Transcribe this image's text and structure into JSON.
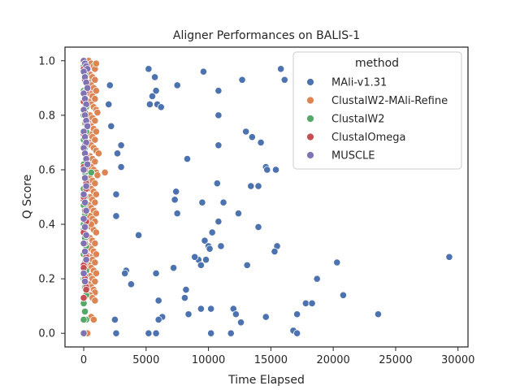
{
  "chart_data": {
    "type": "scatter",
    "title": "Aligner Performances on BALIS-1",
    "xlabel": "Time Elapsed",
    "ylabel": "Q Score",
    "xlim": [
      -1500,
      30800
    ],
    "ylim": [
      -0.05,
      1.05
    ],
    "xticks": [
      0,
      5000,
      10000,
      15000,
      20000,
      25000,
      30000
    ],
    "yticks": [
      0.0,
      0.2,
      0.4,
      0.6,
      0.8,
      1.0
    ],
    "xtick_labels": [
      "0",
      "5000",
      "10000",
      "15000",
      "20000",
      "25000",
      "30000"
    ],
    "ytick_labels": [
      "0.0",
      "0.2",
      "0.4",
      "0.6",
      "0.8",
      "1.0"
    ],
    "grid": false,
    "legend": {
      "title": "method",
      "placement": "top-right"
    },
    "series": [
      {
        "name": "MAli-v1.31",
        "color": "#4c72b0",
        "x": [
          5200,
          5700,
          9600,
          15800,
          16100,
          5500,
          7500,
          12700,
          2100,
          5800,
          10800,
          5300,
          5900,
          2000,
          6200,
          10800,
          2200,
          13000,
          13500,
          14200,
          2700,
          3000,
          10800,
          8300,
          14600,
          14700,
          15400,
          3000,
          10700,
          13400,
          14000,
          7400,
          2600,
          7300,
          9500,
          11200,
          7500,
          2600,
          12400,
          10800,
          14000,
          4400,
          10300,
          9700,
          10000,
          15500,
          11000,
          10100,
          15300,
          9200,
          8900,
          9800,
          13100,
          9400,
          7200,
          3400,
          3300,
          5800,
          18700,
          20300,
          3800,
          8200,
          20800,
          6000,
          8100,
          17800,
          12000,
          9400,
          18300,
          10200,
          12200,
          8400,
          14600,
          2500,
          6300,
          6000,
          12600,
          23600,
          17100,
          2600,
          5200,
          5800,
          10200,
          11800,
          16800,
          17100,
          29300
        ],
        "y": [
          0.97,
          0.94,
          0.96,
          0.97,
          0.93,
          0.87,
          0.91,
          0.93,
          0.91,
          0.89,
          0.89,
          0.84,
          0.84,
          0.84,
          0.83,
          0.8,
          0.76,
          0.74,
          0.72,
          0.7,
          0.66,
          0.69,
          0.69,
          0.64,
          0.61,
          0.6,
          0.6,
          0.61,
          0.55,
          0.54,
          0.54,
          0.52,
          0.51,
          0.49,
          0.48,
          0.48,
          0.44,
          0.43,
          0.44,
          0.41,
          0.39,
          0.36,
          0.37,
          0.34,
          0.32,
          0.32,
          0.32,
          0.31,
          0.3,
          0.27,
          0.28,
          0.27,
          0.25,
          0.25,
          0.24,
          0.23,
          0.22,
          0.22,
          0.2,
          0.26,
          0.18,
          0.16,
          0.14,
          0.12,
          0.13,
          0.11,
          0.09,
          0.09,
          0.11,
          0.09,
          0.07,
          0.07,
          0.06,
          0.05,
          0.06,
          0.05,
          0.04,
          0.07,
          0.07,
          0.0,
          0.0,
          0.0,
          0.0,
          0.0,
          0.01,
          0.0,
          0.28
        ]
      },
      {
        "name": "ClustalW2-MAli-Refine",
        "color": "#dd8452",
        "x": [
          400,
          600,
          800,
          900,
          1000,
          500,
          700,
          900,
          400,
          600,
          800,
          1000,
          500,
          700,
          900,
          400,
          600,
          800,
          1000,
          1100,
          500,
          700,
          900,
          400,
          600,
          800,
          1000,
          500,
          700,
          900,
          400,
          600,
          800,
          1000,
          1200,
          500,
          700,
          900,
          400,
          600,
          800,
          1000,
          1100,
          500,
          700,
          900,
          400,
          600,
          800,
          1000,
          500,
          700,
          900,
          400,
          600,
          800,
          1000,
          500,
          700,
          900,
          400,
          600,
          800,
          1000,
          1700,
          500,
          700,
          900,
          400,
          600,
          800,
          1000,
          500,
          700,
          900,
          400,
          600,
          800,
          1000,
          500,
          700,
          900,
          400,
          600,
          800,
          900,
          500,
          700,
          900,
          600,
          800,
          300,
          600
        ],
        "y": [
          1.0,
          0.99,
          0.98,
          0.97,
          0.99,
          0.95,
          0.94,
          0.93,
          0.92,
          0.91,
          0.9,
          0.89,
          0.88,
          0.87,
          0.86,
          0.85,
          0.84,
          0.83,
          0.82,
          0.81,
          0.8,
          0.79,
          0.78,
          0.77,
          0.76,
          0.75,
          0.74,
          0.73,
          0.72,
          0.71,
          0.7,
          0.69,
          0.68,
          0.67,
          0.66,
          0.65,
          0.64,
          0.63,
          0.62,
          0.61,
          0.6,
          0.59,
          0.58,
          0.57,
          0.56,
          0.55,
          0.54,
          0.53,
          0.52,
          0.51,
          0.5,
          0.49,
          0.48,
          0.47,
          0.46,
          0.45,
          0.44,
          0.43,
          0.42,
          0.41,
          0.4,
          0.39,
          0.38,
          0.37,
          0.59,
          0.35,
          0.34,
          0.33,
          0.32,
          0.31,
          0.3,
          0.29,
          0.28,
          0.27,
          0.26,
          0.25,
          0.24,
          0.23,
          0.22,
          0.21,
          0.2,
          0.19,
          0.18,
          0.17,
          0.16,
          0.15,
          0.14,
          0.13,
          0.12,
          0.06,
          0.05,
          0.0,
          0.4
        ]
      },
      {
        "name": "ClustalW2",
        "color": "#55a868",
        "x": [
          0,
          100,
          200,
          0,
          100,
          200,
          0,
          100,
          200,
          0,
          100,
          200,
          0,
          100,
          200,
          0,
          100,
          0,
          100,
          200,
          0,
          100,
          200,
          0,
          100,
          200,
          0,
          100,
          200,
          0,
          100,
          200,
          0,
          100,
          600,
          0
        ],
        "y": [
          0.98,
          0.95,
          0.92,
          0.89,
          0.86,
          0.83,
          0.8,
          0.77,
          0.74,
          0.71,
          0.68,
          0.65,
          0.62,
          0.59,
          0.56,
          0.53,
          0.5,
          0.47,
          0.44,
          0.41,
          0.38,
          0.35,
          0.32,
          0.29,
          0.26,
          0.23,
          0.2,
          0.17,
          0.14,
          0.11,
          0.08,
          0.05,
          0.4,
          0.45,
          0.59,
          0.05
        ]
      },
      {
        "name": "ClustalOmega",
        "color": "#c44e52",
        "x": [
          0,
          100,
          200,
          0,
          100,
          200,
          0,
          100,
          200,
          0,
          100,
          200,
          0,
          100,
          200,
          0,
          100,
          200,
          0,
          100,
          200,
          0,
          100,
          200,
          0,
          100,
          200,
          0,
          100,
          200
        ],
        "y": [
          0.97,
          0.93,
          0.89,
          0.85,
          0.81,
          0.77,
          0.73,
          0.69,
          0.65,
          0.61,
          0.57,
          0.53,
          0.49,
          0.45,
          0.41,
          0.37,
          0.33,
          0.29,
          0.25,
          0.21,
          0.17,
          0.13,
          0.6,
          0.55,
          0.5,
          0.39,
          0.28,
          0.24,
          0.2,
          0.16
        ]
      },
      {
        "name": "MUSCLE",
        "color": "#8172b3",
        "x": [
          0,
          100,
          200,
          300,
          0,
          100,
          200,
          300,
          0,
          100,
          200,
          0,
          100,
          200,
          300,
          0,
          100,
          200,
          0,
          100,
          200,
          300,
          0,
          100,
          200,
          0,
          100,
          200,
          0,
          100,
          200,
          0,
          100,
          200,
          0,
          100,
          0
        ],
        "y": [
          1.0,
          0.99,
          0.98,
          0.97,
          0.96,
          0.94,
          0.92,
          0.9,
          0.88,
          0.86,
          0.84,
          0.82,
          0.8,
          0.78,
          0.76,
          0.74,
          0.72,
          0.7,
          0.68,
          0.66,
          0.64,
          0.62,
          0.6,
          0.57,
          0.54,
          0.51,
          0.48,
          0.45,
          0.42,
          0.39,
          0.36,
          0.33,
          0.3,
          0.27,
          0.22,
          0.19,
          0.0
        ]
      }
    ]
  }
}
